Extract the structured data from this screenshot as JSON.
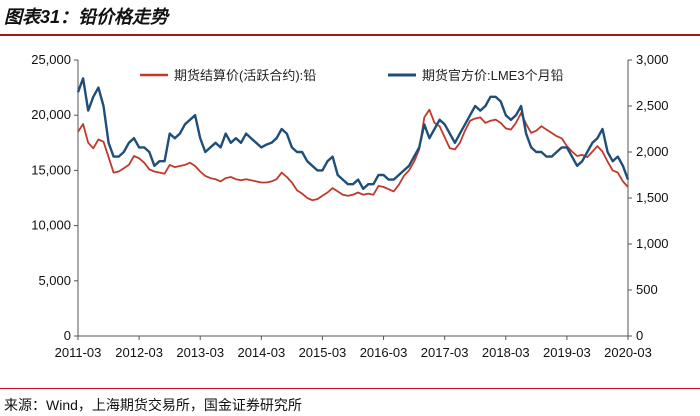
{
  "figure_title": "图表31：铅价格走势",
  "source_note": "来源：Wind，上海期货交易所，国金证券研究所",
  "chart_data": {
    "type": "line",
    "title": "",
    "x_range": [
      "2011-03",
      "2020-03"
    ],
    "x_ticks": [
      "2011-03",
      "2012-03",
      "2013-03",
      "2014-03",
      "2015-03",
      "2016-03",
      "2017-03",
      "2018-03",
      "2019-03",
      "2020-03"
    ],
    "y_left": {
      "range": [
        0,
        25000
      ],
      "ticks": [
        "0",
        "5,000",
        "10,000",
        "15,000",
        "20,000",
        "25,000"
      ]
    },
    "y_right": {
      "range": [
        0,
        3000
      ],
      "ticks": [
        "0",
        "500",
        "1,000",
        "1,500",
        "2,000",
        "2,500",
        "3,000"
      ]
    },
    "legend_position": "top",
    "series": [
      {
        "name": "期货结算价(活跃合约):铅",
        "axis": "left",
        "color": "#c0392b",
        "points": [
          [
            "2011-03",
            18500
          ],
          [
            "2011-04",
            19200
          ],
          [
            "2011-05",
            17500
          ],
          [
            "2011-06",
            17000
          ],
          [
            "2011-07",
            17800
          ],
          [
            "2011-08",
            17600
          ],
          [
            "2011-09",
            16200
          ],
          [
            "2011-10",
            14800
          ],
          [
            "2011-11",
            14900
          ],
          [
            "2011-12",
            15200
          ],
          [
            "2012-01",
            15500
          ],
          [
            "2012-02",
            16300
          ],
          [
            "2012-03",
            16100
          ],
          [
            "2012-04",
            15700
          ],
          [
            "2012-05",
            15100
          ],
          [
            "2012-06",
            14900
          ],
          [
            "2012-07",
            14800
          ],
          [
            "2012-08",
            14700
          ],
          [
            "2012-09",
            15500
          ],
          [
            "2012-10",
            15300
          ],
          [
            "2012-11",
            15400
          ],
          [
            "2012-12",
            15500
          ],
          [
            "2013-01",
            15700
          ],
          [
            "2013-02",
            15400
          ],
          [
            "2013-03",
            14900
          ],
          [
            "2013-04",
            14500
          ],
          [
            "2013-05",
            14300
          ],
          [
            "2013-06",
            14200
          ],
          [
            "2013-07",
            14000
          ],
          [
            "2013-08",
            14300
          ],
          [
            "2013-09",
            14400
          ],
          [
            "2013-10",
            14200
          ],
          [
            "2013-11",
            14100
          ],
          [
            "2013-12",
            14200
          ],
          [
            "2014-01",
            14100
          ],
          [
            "2014-02",
            14000
          ],
          [
            "2014-03",
            13900
          ],
          [
            "2014-04",
            13900
          ],
          [
            "2014-05",
            14000
          ],
          [
            "2014-06",
            14200
          ],
          [
            "2014-07",
            14800
          ],
          [
            "2014-08",
            14400
          ],
          [
            "2014-09",
            13900
          ],
          [
            "2014-10",
            13200
          ],
          [
            "2014-11",
            12900
          ],
          [
            "2014-12",
            12500
          ],
          [
            "2015-01",
            12300
          ],
          [
            "2015-02",
            12400
          ],
          [
            "2015-03",
            12700
          ],
          [
            "2015-04",
            13000
          ],
          [
            "2015-05",
            13400
          ],
          [
            "2015-06",
            13100
          ],
          [
            "2015-07",
            12800
          ],
          [
            "2015-08",
            12700
          ],
          [
            "2015-09",
            12800
          ],
          [
            "2015-10",
            13000
          ],
          [
            "2015-11",
            12800
          ],
          [
            "2015-12",
            12900
          ],
          [
            "2016-01",
            12800
          ],
          [
            "2016-02",
            13600
          ],
          [
            "2016-03",
            13500
          ],
          [
            "2016-04",
            13300
          ],
          [
            "2016-05",
            13100
          ],
          [
            "2016-06",
            13700
          ],
          [
            "2016-07",
            14500
          ],
          [
            "2016-08",
            15000
          ],
          [
            "2016-09",
            15800
          ],
          [
            "2016-10",
            16900
          ],
          [
            "2016-11",
            19800
          ],
          [
            "2016-12",
            20500
          ],
          [
            "2017-01",
            19300
          ],
          [
            "2017-02",
            19000
          ],
          [
            "2017-03",
            18000
          ],
          [
            "2017-04",
            17000
          ],
          [
            "2017-05",
            16900
          ],
          [
            "2017-06",
            17500
          ],
          [
            "2017-07",
            18600
          ],
          [
            "2017-08",
            19500
          ],
          [
            "2017-09",
            19700
          ],
          [
            "2017-10",
            19800
          ],
          [
            "2017-11",
            19300
          ],
          [
            "2017-12",
            19500
          ],
          [
            "2018-01",
            19600
          ],
          [
            "2018-02",
            19300
          ],
          [
            "2018-03",
            18800
          ],
          [
            "2018-04",
            18700
          ],
          [
            "2018-05",
            19300
          ],
          [
            "2018-06",
            20200
          ],
          [
            "2018-07",
            19200
          ],
          [
            "2018-08",
            18400
          ],
          [
            "2018-09",
            18600
          ],
          [
            "2018-10",
            19000
          ],
          [
            "2018-11",
            18700
          ],
          [
            "2018-12",
            18400
          ],
          [
            "2019-01",
            18100
          ],
          [
            "2019-02",
            17900
          ],
          [
            "2019-03",
            17200
          ],
          [
            "2019-04",
            16700
          ],
          [
            "2019-05",
            16300
          ],
          [
            "2019-06",
            16400
          ],
          [
            "2019-07",
            16200
          ],
          [
            "2019-08",
            16700
          ],
          [
            "2019-09",
            17200
          ],
          [
            "2019-10",
            16700
          ],
          [
            "2019-11",
            15800
          ],
          [
            "2019-12",
            15000
          ],
          [
            "2020-01",
            14800
          ],
          [
            "2020-02",
            14000
          ],
          [
            "2020-03",
            13500
          ]
        ]
      },
      {
        "name": "期货官方价:LME3个月铅",
        "axis": "right",
        "color": "#1f4e79",
        "points": [
          [
            "2011-03",
            2650
          ],
          [
            "2011-04",
            2800
          ],
          [
            "2011-05",
            2450
          ],
          [
            "2011-06",
            2600
          ],
          [
            "2011-07",
            2700
          ],
          [
            "2011-08",
            2500
          ],
          [
            "2011-09",
            2100
          ],
          [
            "2011-10",
            1950
          ],
          [
            "2011-11",
            1950
          ],
          [
            "2011-12",
            2000
          ],
          [
            "2012-01",
            2100
          ],
          [
            "2012-02",
            2150
          ],
          [
            "2012-03",
            2050
          ],
          [
            "2012-04",
            2050
          ],
          [
            "2012-05",
            2000
          ],
          [
            "2012-06",
            1850
          ],
          [
            "2012-07",
            1900
          ],
          [
            "2012-08",
            1900
          ],
          [
            "2012-09",
            2200
          ],
          [
            "2012-10",
            2150
          ],
          [
            "2012-11",
            2200
          ],
          [
            "2012-12",
            2300
          ],
          [
            "2013-01",
            2350
          ],
          [
            "2013-02",
            2400
          ],
          [
            "2013-03",
            2150
          ],
          [
            "2013-04",
            2000
          ],
          [
            "2013-05",
            2050
          ],
          [
            "2013-06",
            2100
          ],
          [
            "2013-07",
            2050
          ],
          [
            "2013-08",
            2200
          ],
          [
            "2013-09",
            2100
          ],
          [
            "2013-10",
            2150
          ],
          [
            "2013-11",
            2100
          ],
          [
            "2013-12",
            2200
          ],
          [
            "2014-01",
            2150
          ],
          [
            "2014-02",
            2100
          ],
          [
            "2014-03",
            2050
          ],
          [
            "2014-04",
            2080
          ],
          [
            "2014-05",
            2100
          ],
          [
            "2014-06",
            2150
          ],
          [
            "2014-07",
            2250
          ],
          [
            "2014-08",
            2200
          ],
          [
            "2014-09",
            2050
          ],
          [
            "2014-10",
            2000
          ],
          [
            "2014-11",
            2000
          ],
          [
            "2014-12",
            1900
          ],
          [
            "2015-01",
            1850
          ],
          [
            "2015-02",
            1800
          ],
          [
            "2015-03",
            1800
          ],
          [
            "2015-04",
            1900
          ],
          [
            "2015-05",
            1950
          ],
          [
            "2015-06",
            1750
          ],
          [
            "2015-07",
            1700
          ],
          [
            "2015-08",
            1650
          ],
          [
            "2015-09",
            1650
          ],
          [
            "2015-10",
            1700
          ],
          [
            "2015-11",
            1600
          ],
          [
            "2015-12",
            1650
          ],
          [
            "2016-01",
            1650
          ],
          [
            "2016-02",
            1750
          ],
          [
            "2016-03",
            1750
          ],
          [
            "2016-04",
            1700
          ],
          [
            "2016-05",
            1700
          ],
          [
            "2016-06",
            1750
          ],
          [
            "2016-07",
            1800
          ],
          [
            "2016-08",
            1850
          ],
          [
            "2016-09",
            1950
          ],
          [
            "2016-10",
            2050
          ],
          [
            "2016-11",
            2300
          ],
          [
            "2016-12",
            2150
          ],
          [
            "2017-01",
            2250
          ],
          [
            "2017-02",
            2350
          ],
          [
            "2017-03",
            2300
          ],
          [
            "2017-04",
            2200
          ],
          [
            "2017-05",
            2100
          ],
          [
            "2017-06",
            2200
          ],
          [
            "2017-07",
            2300
          ],
          [
            "2017-08",
            2400
          ],
          [
            "2017-09",
            2500
          ],
          [
            "2017-10",
            2450
          ],
          [
            "2017-11",
            2500
          ],
          [
            "2017-12",
            2600
          ],
          [
            "2018-01",
            2600
          ],
          [
            "2018-02",
            2550
          ],
          [
            "2018-03",
            2400
          ],
          [
            "2018-04",
            2350
          ],
          [
            "2018-05",
            2400
          ],
          [
            "2018-06",
            2500
          ],
          [
            "2018-07",
            2200
          ],
          [
            "2018-08",
            2050
          ],
          [
            "2018-09",
            2000
          ],
          [
            "2018-10",
            2000
          ],
          [
            "2018-11",
            1950
          ],
          [
            "2018-12",
            1950
          ],
          [
            "2019-01",
            2000
          ],
          [
            "2019-02",
            2050
          ],
          [
            "2019-03",
            2050
          ],
          [
            "2019-04",
            1950
          ],
          [
            "2019-05",
            1850
          ],
          [
            "2019-06",
            1900
          ],
          [
            "2019-07",
            2000
          ],
          [
            "2019-08",
            2100
          ],
          [
            "2019-09",
            2150
          ],
          [
            "2019-10",
            2250
          ],
          [
            "2019-11",
            2000
          ],
          [
            "2019-12",
            1900
          ],
          [
            "2020-01",
            1950
          ],
          [
            "2020-02",
            1850
          ],
          [
            "2020-03",
            1700
          ]
        ]
      }
    ]
  }
}
